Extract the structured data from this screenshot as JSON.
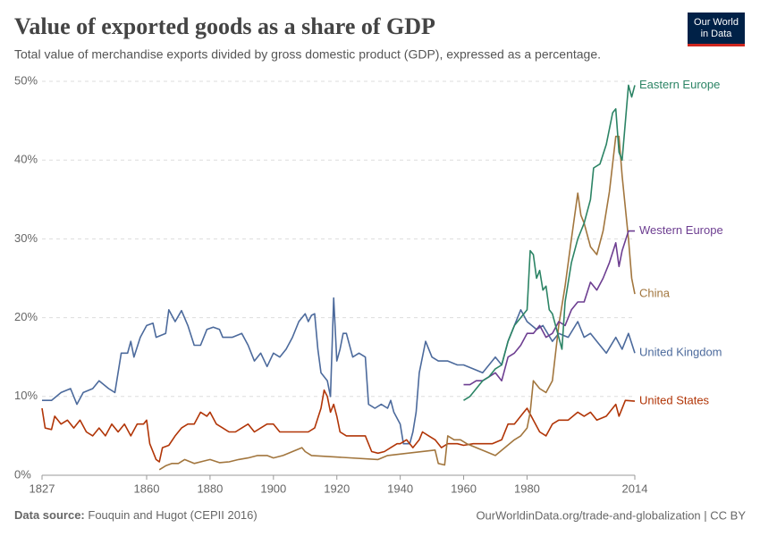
{
  "logo": [
    "Our World",
    "in Data"
  ],
  "footer": {
    "source_label": "Data source:",
    "source": "Fouquin and Hugot (CEPII 2016)",
    "url": "OurWorldinData.org/trade-and-globalization | CC BY"
  },
  "chart_data": {
    "type": "line",
    "title": "Value of exported goods as a share of GDP",
    "subtitle": "Total value of merchandise exports divided by gross domestic product (GDP), expressed as a percentage.",
    "xlim": [
      1827,
      2014
    ],
    "xticks": [
      1827,
      1860,
      1880,
      1900,
      1920,
      1940,
      1960,
      1980,
      2014
    ],
    "ylim": [
      0,
      50
    ],
    "yticks": [
      {
        "value": 0,
        "label": "0%"
      },
      {
        "value": 10,
        "label": "10%"
      },
      {
        "value": 20,
        "label": "20%"
      },
      {
        "value": 30,
        "label": "30%"
      },
      {
        "value": 40,
        "label": "40%"
      },
      {
        "value": 50,
        "label": "50%"
      }
    ],
    "grid": true,
    "series": [
      {
        "name": "United Kingdom",
        "color": "#4c6a9c",
        "x": [
          1827,
          1830,
          1833,
          1836,
          1838,
          1840,
          1843,
          1845,
          1848,
          1850,
          1852,
          1854,
          1855,
          1856,
          1858,
          1860,
          1862,
          1863,
          1866,
          1867,
          1869,
          1871,
          1873,
          1875,
          1877,
          1879,
          1881,
          1883,
          1884,
          1887,
          1890,
          1892,
          1894,
          1896,
          1898,
          1900,
          1902,
          1904,
          1906,
          1908,
          1910,
          1911,
          1912,
          1913,
          1914,
          1915,
          1917,
          1918,
          1919,
          1920,
          1921,
          1922,
          1923,
          1925,
          1927,
          1929,
          1930,
          1932,
          1934,
          1936,
          1937,
          1938,
          1940,
          1941,
          1943,
          1944,
          1945,
          1946,
          1948,
          1950,
          1952,
          1955,
          1958,
          1960,
          1963,
          1966,
          1968,
          1970,
          1972,
          1974,
          1976,
          1978,
          1980,
          1983,
          1985,
          1988,
          1990,
          1993,
          1996,
          1998,
          2000,
          2002,
          2005,
          2008,
          2010,
          2012,
          2014
        ],
        "values": [
          9.5,
          9.5,
          10.5,
          11,
          9,
          10.5,
          11,
          12,
          11,
          10.5,
          15.5,
          15.5,
          17,
          15,
          17.5,
          19,
          19.3,
          17.5,
          18,
          21,
          19.5,
          20.9,
          19,
          16.5,
          16.5,
          18.5,
          18.8,
          18.5,
          17.5,
          17.5,
          18,
          16.5,
          14.5,
          15.5,
          13.8,
          15.5,
          15,
          16,
          17.5,
          19.5,
          20.5,
          19.5,
          20.3,
          20.5,
          16,
          13,
          12,
          10,
          22.5,
          14.5,
          16,
          18,
          18,
          15,
          15.5,
          15,
          9,
          8.5,
          9,
          8.5,
          9.5,
          8,
          6.5,
          4,
          4,
          5.5,
          8,
          13,
          17,
          15,
          14.5,
          14.5,
          14,
          14,
          13.5,
          13,
          14,
          15,
          14,
          17,
          19,
          21,
          19.5,
          18.5,
          19,
          17,
          18,
          17.5,
          19.5,
          17.5,
          18,
          17,
          15.5,
          17.5,
          16,
          18,
          15.5
        ]
      },
      {
        "name": "United States",
        "color": "#b13507",
        "x": [
          1827,
          1828,
          1830,
          1831,
          1833,
          1835,
          1837,
          1839,
          1841,
          1843,
          1845,
          1847,
          1849,
          1851,
          1853,
          1855,
          1857,
          1859,
          1860,
          1861,
          1863,
          1864,
          1865,
          1867,
          1869,
          1871,
          1873,
          1875,
          1877,
          1879,
          1880,
          1882,
          1884,
          1886,
          1888,
          1890,
          1892,
          1894,
          1896,
          1898,
          1900,
          1902,
          1905,
          1908,
          1911,
          1913,
          1915,
          1916,
          1917,
          1918,
          1919,
          1920,
          1921,
          1923,
          1926,
          1929,
          1931,
          1933,
          1935,
          1937,
          1939,
          1940,
          1942,
          1944,
          1946,
          1947,
          1949,
          1951,
          1953,
          1955,
          1958,
          1960,
          1963,
          1966,
          1969,
          1972,
          1974,
          1976,
          1979,
          1980,
          1982,
          1984,
          1986,
          1988,
          1990,
          1993,
          1996,
          1998,
          2000,
          2002,
          2005,
          2008,
          2009,
          2011,
          2014
        ],
        "values": [
          8.5,
          6,
          5.8,
          7.5,
          6.5,
          7,
          6,
          7,
          5.5,
          5,
          6,
          5,
          6.5,
          5.5,
          6.5,
          5,
          6.5,
          6.5,
          7,
          4,
          2,
          1.7,
          3.5,
          3.8,
          5,
          6,
          6.5,
          6.5,
          8,
          7.5,
          8,
          6.5,
          6,
          5.5,
          5.5,
          6,
          6.5,
          5.5,
          6,
          6.5,
          6.5,
          5.5,
          5.5,
          5.5,
          5.5,
          6,
          8.5,
          10.8,
          10,
          8,
          9,
          7.5,
          5.5,
          5,
          5,
          5,
          3,
          2.8,
          3,
          3.5,
          4,
          4,
          4.5,
          3.5,
          4.5,
          5.5,
          5,
          4.5,
          3.5,
          4,
          4,
          3.8,
          4,
          4,
          4,
          4.5,
          6.5,
          6.5,
          8,
          8.5,
          7,
          5.5,
          5,
          6.5,
          7,
          7,
          8,
          7.5,
          8,
          7,
          7.5,
          9,
          7.5,
          9.5,
          9.4
        ]
      },
      {
        "name": "China",
        "color": "#a2763e",
        "x": [
          1864,
          1866,
          1868,
          1870,
          1872,
          1875,
          1878,
          1880,
          1883,
          1886,
          1889,
          1892,
          1895,
          1898,
          1900,
          1903,
          1906,
          1909,
          1910,
          1912,
          1933,
          1936,
          1951,
          1952,
          1954,
          1955,
          1957,
          1959,
          1961,
          1964,
          1967,
          1970,
          1973,
          1976,
          1978,
          1980,
          1981,
          1982,
          1984,
          1986,
          1988,
          1990,
          1992,
          1994,
          1996,
          1997,
          1998,
          2000,
          2002,
          2004,
          2006,
          2008,
          2009,
          2010,
          2012,
          2013,
          2014
        ],
        "values": [
          0.7,
          1.2,
          1.5,
          1.5,
          2,
          1.5,
          1.8,
          2,
          1.6,
          1.7,
          2,
          2.2,
          2.5,
          2.5,
          2.2,
          2.5,
          3,
          3.5,
          3,
          2.5,
          2,
          2.5,
          3.2,
          1.5,
          1.3,
          5,
          4.5,
          4.5,
          4,
          3.5,
          3,
          2.5,
          3.5,
          4.5,
          5,
          6,
          8,
          12,
          11,
          10.5,
          12,
          19,
          24,
          30,
          35.8,
          33,
          32,
          29,
          28,
          31,
          36,
          43,
          43,
          38,
          30,
          25,
          23
        ]
      },
      {
        "name": "Western Europe",
        "color": "#6d3e91",
        "x": [
          1960,
          1962,
          1964,
          1966,
          1968,
          1970,
          1972,
          1974,
          1976,
          1978,
          1980,
          1982,
          1984,
          1986,
          1988,
          1990,
          1992,
          1994,
          1996,
          1998,
          2000,
          2002,
          2004,
          2006,
          2008,
          2009,
          2010,
          2012,
          2014
        ],
        "values": [
          11.5,
          11.5,
          12,
          12,
          12.5,
          13,
          12,
          15,
          15.5,
          16.5,
          18,
          18,
          19,
          17.5,
          18,
          19.5,
          19,
          21,
          22,
          22,
          24.5,
          23.5,
          25,
          27,
          29.5,
          26.5,
          28.5,
          31,
          31
        ]
      },
      {
        "name": "Eastern Europe",
        "color": "#2c8465",
        "x": [
          1960,
          1962,
          1964,
          1966,
          1968,
          1970,
          1972,
          1974,
          1976,
          1978,
          1980,
          1981,
          1982,
          1983,
          1984,
          1985,
          1986,
          1987,
          1988,
          1990,
          1991,
          1992,
          1994,
          1996,
          1998,
          2000,
          2001,
          2003,
          2005,
          2007,
          2008,
          2009,
          2010,
          2012,
          2013,
          2014
        ],
        "values": [
          9.5,
          10,
          11,
          12,
          12.5,
          13.5,
          14,
          17,
          19,
          20,
          21,
          28.5,
          28,
          25,
          26,
          23.5,
          24,
          21,
          20.5,
          17.5,
          16,
          22,
          27,
          30,
          32,
          35,
          39,
          39.5,
          42,
          46,
          46.5,
          41,
          40,
          49.5,
          48,
          49.5
        ]
      }
    ]
  }
}
